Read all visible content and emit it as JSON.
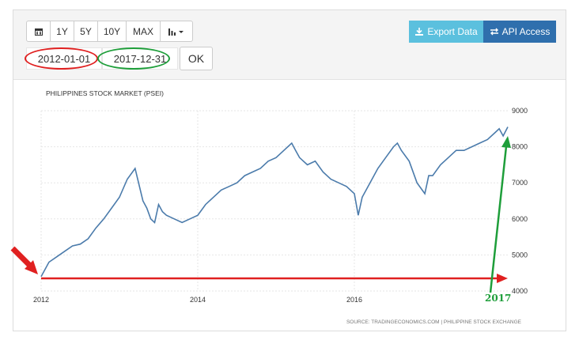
{
  "toolbar": {
    "range_buttons": [
      "1Y",
      "5Y",
      "10Y",
      "MAX"
    ],
    "start_date": "2012-01-01",
    "end_date": "2017-12-31",
    "ok_label": "OK",
    "export_label": "Export Data",
    "api_label": "API Access"
  },
  "colors": {
    "line": "#4b7bab",
    "export_bg": "#5bc0de",
    "api_bg": "#2f6fad",
    "annotation_red": "#e02020",
    "annotation_green": "#1e9e3a"
  },
  "annotation_label": "2017",
  "chart_data": {
    "type": "line",
    "title": "PHILIPPINES STOCK MARKET (PSEI)",
    "source": "SOURCE: TRADINGECONOMICS.COM | PHILIPPINE STOCK EXCHANGE",
    "x_ticks": [
      "2012",
      "2014",
      "2016"
    ],
    "y_ticks": [
      4000,
      5000,
      6000,
      7000,
      8000,
      9000
    ],
    "ylim": [
      4000,
      9000
    ],
    "xlim": [
      2012.0,
      2017.96
    ],
    "grid": true,
    "series": [
      {
        "x": [
          2012.0,
          2012.1,
          2012.2,
          2012.3,
          2012.4,
          2012.5,
          2012.6,
          2012.7,
          2012.8,
          2012.9,
          2013.0,
          2013.1,
          2013.2,
          2013.3,
          2013.35,
          2013.4,
          2013.45,
          2013.5,
          2013.55,
          2013.6,
          2013.7,
          2013.8,
          2013.9,
          2014.0,
          2014.1,
          2014.2,
          2014.3,
          2014.4,
          2014.5,
          2014.6,
          2014.7,
          2014.8,
          2014.9,
          2015.0,
          2015.1,
          2015.2,
          2015.25,
          2015.3,
          2015.4,
          2015.5,
          2015.6,
          2015.7,
          2015.8,
          2015.9,
          2016.0,
          2016.05,
          2016.1,
          2016.2,
          2016.3,
          2016.4,
          2016.5,
          2016.55,
          2016.6,
          2016.7,
          2016.8,
          2016.9,
          2016.95,
          2017.0,
          2017.1,
          2017.2,
          2017.3,
          2017.4,
          2017.5,
          2017.6,
          2017.7,
          2017.8,
          2017.85,
          2017.9,
          2017.96
        ],
        "y": [
          4400,
          4800,
          4950,
          5100,
          5250,
          5300,
          5450,
          5750,
          6000,
          6300,
          6600,
          7100,
          7400,
          6500,
          6300,
          6000,
          5900,
          6400,
          6200,
          6100,
          6000,
          5900,
          6000,
          6100,
          6400,
          6600,
          6800,
          6900,
          7000,
          7200,
          7300,
          7400,
          7600,
          7700,
          7900,
          8100,
          7900,
          7700,
          7500,
          7600,
          7300,
          7100,
          7000,
          6900,
          6700,
          6100,
          6600,
          7000,
          7400,
          7700,
          8000,
          8100,
          7900,
          7600,
          7000,
          6700,
          7200,
          7200,
          7500,
          7700,
          7900,
          7900,
          8000,
          8100,
          8200,
          8400,
          8500,
          8300,
          8550
        ]
      }
    ]
  }
}
